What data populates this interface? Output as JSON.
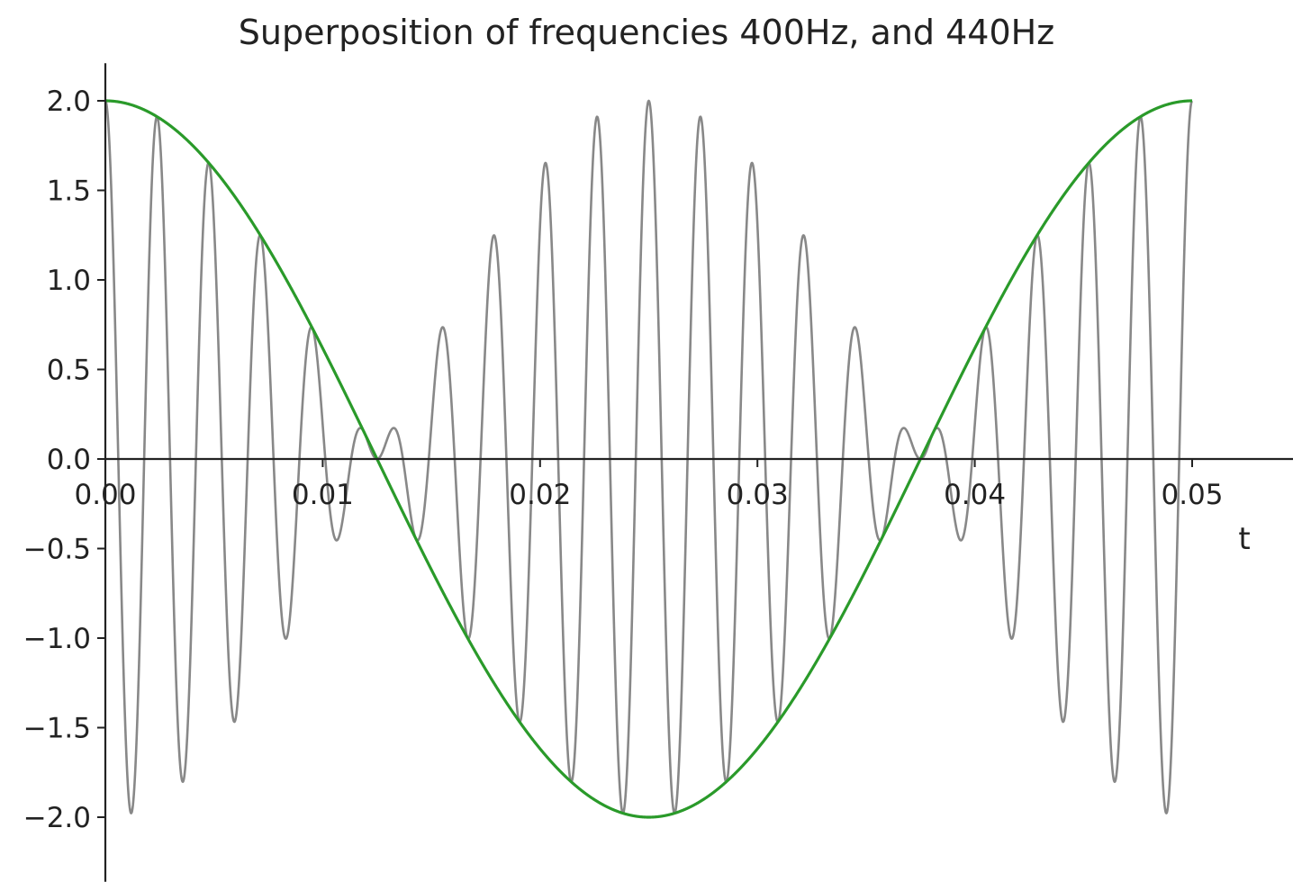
{
  "chart_data": {
    "type": "line",
    "title": "Superposition of frequencies 400Hz, and 440Hz",
    "xlabel": "t",
    "ylabel": "",
    "xlim": [
      0,
      0.0525
    ],
    "ylim": [
      -2.2,
      2.2
    ],
    "x_ticks": [
      0.0,
      0.01,
      0.02,
      0.03,
      0.04,
      0.05
    ],
    "x_tick_labels": [
      "0.00",
      "0.01",
      "0.02",
      "0.03",
      "0.04",
      "0.05"
    ],
    "y_ticks": [
      2.0,
      1.5,
      1.0,
      0.5,
      0.0,
      -0.5,
      -1.0,
      -1.5,
      -2.0
    ],
    "y_tick_labels": [
      "2.0",
      "1.5",
      "1.0",
      "0.5",
      "0.0",
      "−0.5",
      "−1.0",
      "−1.5",
      "−2.0"
    ],
    "grid": false,
    "spines": "centered",
    "series": [
      {
        "function": "cos(2*pi*400*t) + cos(2*pi*440*t)",
        "t_range": [
          0,
          0.05
        ],
        "color": "#888888"
      },
      {
        "function": "2*cos(2*pi*20*t)",
        "t_range": [
          0,
          0.05
        ],
        "color": "#2a9a2a"
      }
    ]
  }
}
